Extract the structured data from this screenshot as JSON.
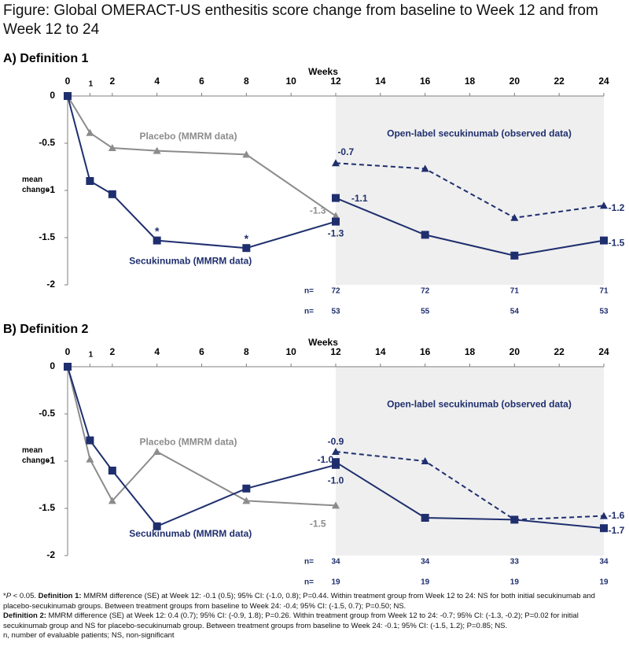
{
  "figure_title": "Figure: Global OMERACT-US enthesitis score change from baseline to Week 12 and from Week 12 to 24",
  "colors": {
    "secukinumab": "#1f2f6e",
    "placebo": "#8c8c8c",
    "open_label": "#1f2f6e",
    "open_label_shade": "#efefef",
    "axis": "#7f7f7f"
  },
  "chart_data": [
    {
      "type": "line",
      "panel_title": "A) Definition 1",
      "xlabel": "Weeks",
      "ylabel": "mean change",
      "xticks": [
        0,
        1,
        2,
        4,
        6,
        8,
        10,
        12,
        14,
        16,
        18,
        20,
        22,
        24
      ],
      "xtick_labels": [
        "0",
        "1",
        "2",
        "4",
        "6",
        "8",
        "10",
        "12",
        "14",
        "16",
        "18",
        "20",
        "22",
        "24"
      ],
      "yticks": [
        0,
        -0.5,
        -1,
        -1.5,
        -2
      ],
      "ytick_labels": [
        "0",
        "-0.5",
        "-1",
        "-1.5",
        "-2"
      ],
      "xlim": [
        0,
        24
      ],
      "ylim": [
        -2,
        0
      ],
      "shaded_region": {
        "x_from": 12,
        "x_to": 24,
        "label": "Open-label secukinumab (observed data)"
      },
      "series": [
        {
          "name": "Placebo (MMRM data)",
          "style": "solid",
          "marker": "triangle",
          "color_key": "placebo",
          "x": [
            0,
            1,
            2,
            4,
            8,
            12
          ],
          "y": [
            0,
            -0.39,
            -0.55,
            -0.58,
            -0.62,
            -1.27
          ]
        },
        {
          "name": "Secukinumab (MMRM data)",
          "style": "solid",
          "marker": "square",
          "color_key": "secukinumab",
          "x": [
            0,
            1,
            2,
            4,
            8,
            12
          ],
          "y": [
            0,
            -0.9,
            -1.04,
            -1.53,
            -1.61,
            -1.33
          ]
        },
        {
          "name": "",
          "style": "dashed",
          "marker": "triangle",
          "color_key": "open_label",
          "x": [
            12,
            16,
            20,
            24
          ],
          "y": [
            -0.71,
            -0.77,
            -1.29,
            -1.16
          ]
        },
        {
          "name": "",
          "style": "solid",
          "marker": "square",
          "color_key": "secukinumab",
          "x": [
            12,
            16,
            20,
            24
          ],
          "y": [
            -1.08,
            -1.47,
            -1.69,
            -1.53
          ]
        }
      ],
      "annotations": [
        {
          "text": "*",
          "x": 4,
          "y": -1.44,
          "color_key": "secukinumab"
        },
        {
          "text": "*",
          "x": 8,
          "y": -1.52,
          "color_key": "secukinumab"
        },
        {
          "text": "-0.7",
          "x": 12.45,
          "y": -0.6,
          "color_key": "open_label",
          "anchor": "middle"
        },
        {
          "text": "-1.1",
          "x": 12.7,
          "y": -1.09,
          "color_key": "open_label",
          "anchor": "start"
        },
        {
          "text": "-1.3",
          "x": 11.2,
          "y": -1.22,
          "color_key": "placebo",
          "anchor": "middle"
        },
        {
          "text": "-1.3",
          "x": 12,
          "y": -1.46,
          "color_key": "secukinumab",
          "anchor": "middle"
        },
        {
          "text": "-1.2",
          "x": 24.2,
          "y": -1.19,
          "color_key": "open_label",
          "anchor": "start"
        },
        {
          "text": "-1.5",
          "x": 24.2,
          "y": -1.56,
          "color_key": "secukinumab",
          "anchor": "start"
        }
      ],
      "n_rows": {
        "label": "n=",
        "x": [
          12,
          16,
          20,
          24
        ],
        "rows": [
          [
            "72",
            "72",
            "71",
            "71"
          ],
          [
            "53",
            "55",
            "54",
            "53"
          ]
        ]
      }
    },
    {
      "type": "line",
      "panel_title": "B) Definition 2",
      "xlabel": "Weeks",
      "ylabel": "mean change",
      "xticks": [
        0,
        1,
        2,
        4,
        6,
        8,
        10,
        12,
        14,
        16,
        18,
        20,
        22,
        24
      ],
      "xtick_labels": [
        "0",
        "1",
        "2",
        "4",
        "6",
        "8",
        "10",
        "12",
        "14",
        "16",
        "18",
        "20",
        "22",
        "24"
      ],
      "yticks": [
        0,
        -0.5,
        -1,
        -1.5,
        -2
      ],
      "ytick_labels": [
        "0",
        "-0.5",
        "-1",
        "-1.5",
        "-2"
      ],
      "xlim": [
        0,
        24
      ],
      "ylim": [
        -2,
        0
      ],
      "shaded_region": {
        "x_from": 12,
        "x_to": 24,
        "label": "Open-label secukinumab (observed data)"
      },
      "series": [
        {
          "name": "Placebo (MMRM data)",
          "style": "solid",
          "marker": "triangle",
          "color_key": "placebo",
          "x": [
            0,
            1,
            2,
            4,
            8,
            12
          ],
          "y": [
            0,
            -0.98,
            -1.42,
            -0.9,
            -1.42,
            -1.47
          ]
        },
        {
          "name": "Secukinumab (MMRM data)",
          "style": "solid",
          "marker": "square",
          "color_key": "secukinumab",
          "x": [
            0,
            1,
            2,
            4,
            8,
            12
          ],
          "y": [
            0,
            -0.78,
            -1.1,
            -1.69,
            -1.29,
            -1.04
          ]
        },
        {
          "name": "",
          "style": "dashed",
          "marker": "triangle",
          "color_key": "open_label",
          "x": [
            12,
            16,
            20,
            24
          ],
          "y": [
            -0.9,
            -1.0,
            -1.62,
            -1.58
          ]
        },
        {
          "name": "",
          "style": "solid",
          "marker": "square",
          "color_key": "secukinumab",
          "x": [
            12,
            16,
            20,
            24
          ],
          "y": [
            -1.01,
            -1.6,
            -1.62,
            -1.71
          ]
        }
      ],
      "annotations": [
        {
          "text": "-0.9",
          "x": 12,
          "y": -0.8,
          "color_key": "open_label",
          "anchor": "middle"
        },
        {
          "text": "-1.0",
          "x": 11.9,
          "y": -0.99,
          "color_key": "open_label",
          "anchor": "end"
        },
        {
          "text": "-1.0",
          "x": 12,
          "y": -1.21,
          "color_key": "secukinumab",
          "anchor": "middle"
        },
        {
          "text": "-1.5",
          "x": 11.2,
          "y": -1.67,
          "color_key": "placebo",
          "anchor": "middle"
        },
        {
          "text": "-1.6",
          "x": 24.2,
          "y": -1.58,
          "color_key": "open_label",
          "anchor": "start"
        },
        {
          "text": "-1.7",
          "x": 24.2,
          "y": -1.74,
          "color_key": "secukinumab",
          "anchor": "start"
        }
      ],
      "n_rows": {
        "label": "n=",
        "x": [
          12,
          16,
          20,
          24
        ],
        "rows": [
          [
            "34",
            "34",
            "33",
            "34"
          ],
          [
            "19",
            "19",
            "19",
            "19"
          ]
        ]
      }
    }
  ],
  "footnotes": {
    "line1_pre": "*",
    "line1_p": "P",
    "line1_after": " < 0.05. ",
    "line1_def": "Definition 1:",
    "line1_text": " MMRM difference (SE) at Week 12: -0.1 (0.5); 95% CI: (-1.0, 0.8); P=0.44. Within treatment group from Week 12 to 24: NS for both initial secukinumab and placebo-secukinumab groups. Between treatment groups from baseline to Week 24: -0.4; 95% CI: (-1.5, 0.7); P=0.50; NS.",
    "line2_def": "Definition 2:",
    "line2_text": " MMRM difference (SE) at Week 12: 0.4 (0.7); 95% CI: (-0.9, 1.8); P=0.26. Within treatment group from Week 12 to 24: -0.7; 95% CI: (-1.3, -0.2); P=0.02 for initial secukinumab group and NS for placebo-secukinumab group. Between treatment groups from baseline to Week 24: -0.1; 95% CI: (-1.5, 1.2); P=0.85; NS.",
    "line3": "n, number of evaluable patients; NS, non-significant"
  }
}
